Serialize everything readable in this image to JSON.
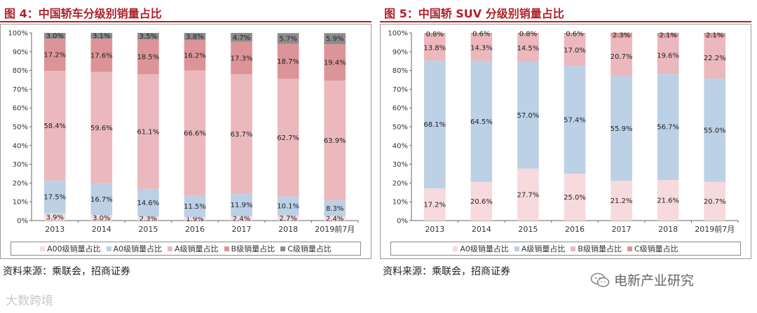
{
  "chart_data": [
    {
      "type": "bar",
      "stacked": true,
      "title": "图 4：中国轿车分级别销量占比",
      "categories": [
        "2013",
        "2014",
        "2015",
        "2016",
        "2017",
        "2018",
        "2019前7月"
      ],
      "series": [
        {
          "name": "A00级销量占比",
          "color": "#f6dadd",
          "values": [
            3.9,
            3.0,
            2.3,
            1.9,
            2.4,
            2.7,
            2.4
          ],
          "labels": [
            "3.9%",
            "3.0%",
            "2.3%",
            "1.9%",
            "2.4%",
            "2.7%",
            "2.4%"
          ]
        },
        {
          "name": "A0级销量占比",
          "color": "#bcd0e6",
          "values": [
            17.5,
            16.7,
            14.6,
            11.5,
            11.9,
            10.1,
            8.3
          ],
          "labels": [
            "17.5%",
            "16.7%",
            "14.6%",
            "11.5%",
            "11.9%",
            "10.1%",
            "8.3%"
          ]
        },
        {
          "name": "A级销量占比",
          "color": "#ebb8bd",
          "values": [
            58.4,
            59.6,
            61.1,
            66.6,
            63.7,
            62.7,
            63.9
          ],
          "labels": [
            "58.4%",
            "59.6%",
            "61.1%",
            "66.6%",
            "63.7%",
            "62.7%",
            "63.9%"
          ]
        },
        {
          "name": "B级销量占比",
          "color": "#dc9498",
          "values": [
            17.2,
            17.6,
            18.5,
            16.2,
            17.3,
            18.7,
            19.4
          ],
          "labels": [
            "17.2%",
            "17.6%",
            "18.5%",
            "16.2%",
            "17.3%",
            "18.7%",
            "19.4%"
          ]
        },
        {
          "name": "C级销量占比",
          "color": "#8c8c8c",
          "values": [
            3.0,
            3.1,
            3.5,
            3.8,
            4.7,
            5.7,
            5.9
          ],
          "labels": [
            "3.0%",
            "3.1%",
            "3.5%",
            "3.8%",
            "4.7%",
            "5.7%",
            "5.9%"
          ]
        }
      ],
      "yticks": [
        "0%",
        "10%",
        "20%",
        "30%",
        "40%",
        "50%",
        "60%",
        "70%",
        "80%",
        "90%",
        "100%"
      ],
      "ylim": [
        0,
        100
      ],
      "grid": false,
      "legend_position": "bottom"
    },
    {
      "type": "bar",
      "stacked": true,
      "title": "图 5：中国轿 SUV 分级别销量占比",
      "categories": [
        "2013",
        "2014",
        "2015",
        "2016",
        "2017",
        "2018",
        "2019前7月"
      ],
      "series": [
        {
          "name": "A0级销量占比",
          "color": "#f6dadd",
          "values": [
            17.2,
            20.6,
            27.7,
            25.0,
            21.2,
            21.6,
            20.7
          ],
          "labels": [
            "17.2%",
            "20.6%",
            "27.7%",
            "25.0%",
            "21.2%",
            "21.6%",
            "20.7%"
          ]
        },
        {
          "name": "A级销量占比",
          "color": "#bcd0e6",
          "values": [
            68.1,
            64.5,
            57.0,
            57.4,
            55.9,
            56.7,
            55.0
          ],
          "labels": [
            "68.1%",
            "64.5%",
            "57.0%",
            "57.4%",
            "55.9%",
            "56.7%",
            "55.0%"
          ]
        },
        {
          "name": "B级销量占比",
          "color": "#ebb8bd",
          "values": [
            13.8,
            14.3,
            14.5,
            17.0,
            20.7,
            19.6,
            22.2
          ],
          "labels": [
            "13.8%",
            "14.3%",
            "14.5%",
            "17.0%",
            "20.7%",
            "19.6%",
            "22.2%"
          ]
        },
        {
          "name": "C级销量占比",
          "color": "#dc9498",
          "values": [
            0.8,
            0.6,
            0.8,
            0.6,
            2.3,
            2.1,
            2.1
          ],
          "labels": [
            "0.8%",
            "0.6%",
            "0.8%",
            "0.6%",
            "2.3%",
            "2.1%",
            "2.1%"
          ]
        }
      ],
      "yticks": [
        "0%",
        "10%",
        "20%",
        "30%",
        "40%",
        "50%",
        "60%",
        "70%",
        "80%",
        "90%",
        "100%"
      ],
      "ylim": [
        0,
        100
      ],
      "grid": false,
      "legend_position": "bottom"
    }
  ],
  "sources": [
    "资料来源：乘联会，招商证券",
    "资料来源：乘联会，招商证券"
  ],
  "watermarks": {
    "right": "电新产业研究",
    "left": "大数跨境"
  }
}
